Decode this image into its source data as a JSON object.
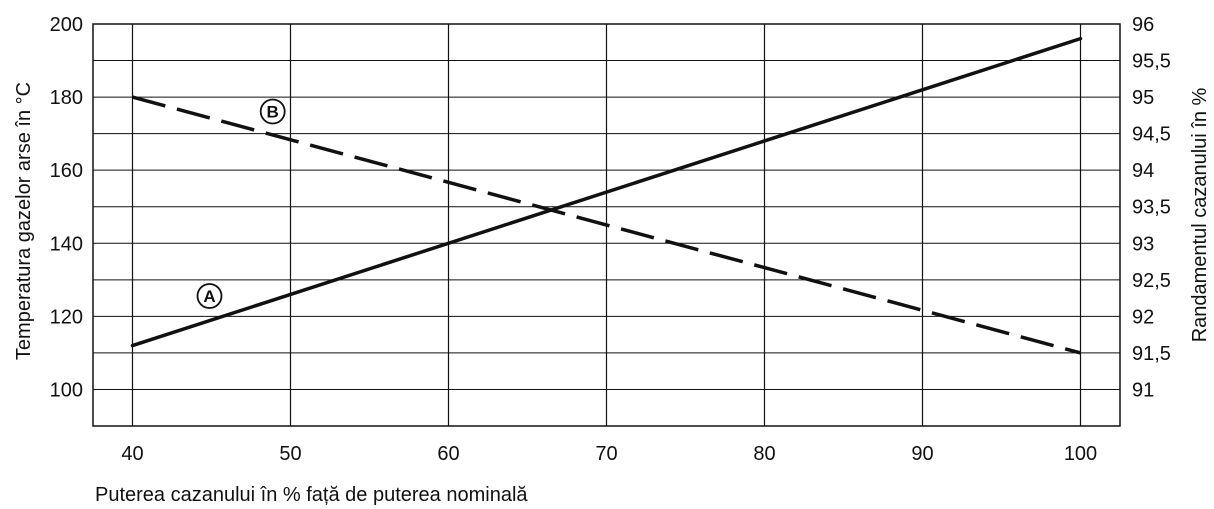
{
  "chart_data": {
    "type": "line",
    "xlabel": "Puterea cazanului în % față de puterea nominală",
    "ylabel_left": "Temperatura gazelor arse în °C",
    "ylabel_right": "Randamentul cazanului în %",
    "xlim": [
      37.5,
      102.5
    ],
    "ylim_left": [
      90,
      200
    ],
    "ylim_right": [
      90.5,
      96
    ],
    "x_ticks": [
      "40",
      "50",
      "60",
      "70",
      "80",
      "90",
      "100"
    ],
    "y_left_ticks": [
      "100",
      "120",
      "140",
      "160",
      "180",
      "200"
    ],
    "y_right_ticks": [
      "91",
      "91,5",
      "92",
      "92,5",
      "93",
      "93,5",
      "94",
      "94,5",
      "95",
      "95,5",
      "96"
    ],
    "grid": true,
    "series": [
      {
        "name": "A",
        "axis": "left",
        "style": "solid",
        "x": [
          40,
          100
        ],
        "y": [
          112,
          196
        ]
      },
      {
        "name": "B",
        "axis": "right",
        "style": "dashed",
        "x": [
          40,
          100
        ],
        "y": [
          95,
          91.5
        ]
      }
    ],
    "markers": [
      {
        "label": "A",
        "series": "A",
        "x": 45
      },
      {
        "label": "B",
        "series": "B",
        "x": 49
      }
    ],
    "colors": {
      "line": "#111111",
      "grid": "#111111",
      "background": "#ffffff"
    }
  }
}
